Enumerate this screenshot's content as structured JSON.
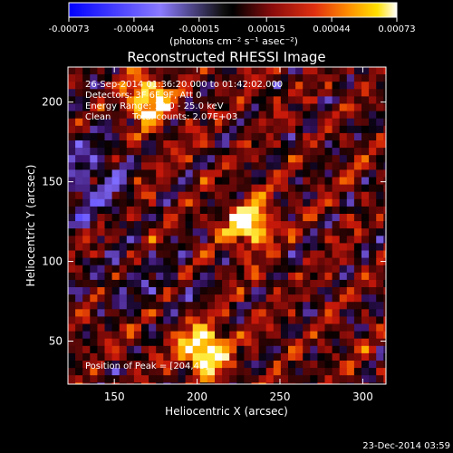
{
  "colorbar": {
    "tick_labels": [
      "-0.00073",
      "-0.00044",
      "-0.00015",
      "0.00015",
      "0.00044",
      "0.00073"
    ],
    "tick_values": [
      -0.00073,
      -0.00044,
      -0.00015,
      0.00015,
      0.00044,
      0.00073
    ],
    "range": [
      -0.00073,
      0.00073
    ],
    "units_label": "(photons cm⁻² s⁻¹ asec⁻²)",
    "colors": {
      "negative_low": "#0000ff",
      "negative_high": "#9b8cff",
      "zero": "#000000",
      "mid_red": "#b01212",
      "orange": "#ff7a00",
      "yellow": "#ffe000",
      "white": "#ffffff"
    }
  },
  "chart_data": {
    "type": "heatmap",
    "title": "Reconstructed RHESSI Image",
    "xlabel": "Heliocentric X (arcsec)",
    "ylabel": "Heliocentric Y (arcsec)",
    "xlim": [
      122,
      314
    ],
    "ylim": [
      23,
      222
    ],
    "x_ticks": [
      150,
      200,
      250,
      300
    ],
    "y_ticks": [
      50,
      100,
      150,
      200
    ],
    "x_tick_labels": [
      "150",
      "200",
      "250",
      "300"
    ],
    "y_tick_labels": [
      "50",
      "100",
      "150",
      "200"
    ],
    "annotations": [
      "26-Sep-2014 01:36:20.000 to 01:42:02.000",
      "Detectors: 3F 6F 9F, Att 0",
      "Energy Range: 12.0 - 25.0 keV",
      "Clean",
      "Total counts: 2.07E+03"
    ],
    "peak_label": "Position of Peak = [204,45]",
    "peak_position": [
      204,
      45
    ],
    "bright_sources": [
      {
        "x": 204,
        "y": 45
      },
      {
        "x": 232,
        "y": 124
      },
      {
        "x": 170,
        "y": 201
      }
    ]
  },
  "footer": {
    "timestamp": "23-Dec-2014 03:59"
  }
}
